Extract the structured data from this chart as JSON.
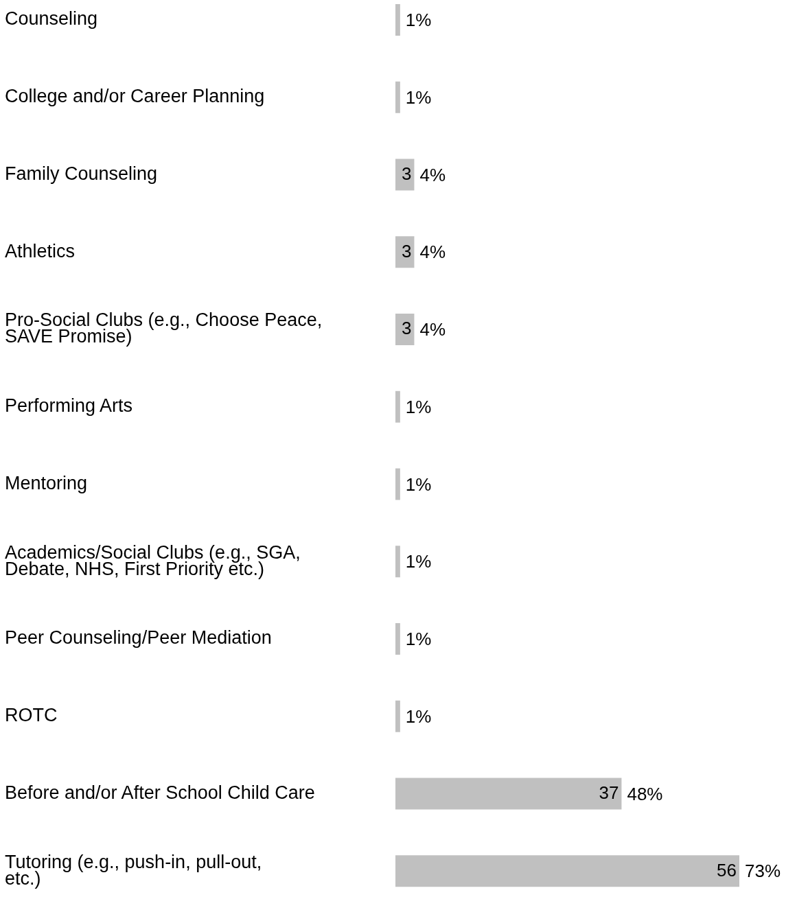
{
  "chart_data": {
    "type": "bar",
    "orientation": "horizontal",
    "categories": [
      "Counseling",
      "College and/or Career Planning",
      "Family Counseling",
      "Athletics",
      "Pro-Social Clubs (e.g., Choose Peace, SAVE Promise)",
      "Performing Arts",
      "Mentoring",
      "Academics/Social Clubs (e.g., SGA, Debate, NHS, First Priority etc.)",
      "Peer Counseling/Peer Mediation",
      "ROTC",
      "Before and/or After School Child Care",
      "Tutoring (e.g., push-in, pull-out, etc.)"
    ],
    "values": [
      1,
      1,
      4,
      4,
      4,
      1,
      1,
      1,
      1,
      1,
      48,
      73
    ],
    "color": "#c0c0c0",
    "value_labels": [
      "1%",
      "1%",
      "4%",
      "4%",
      "4%",
      "1%",
      "1%",
      "1%",
      "1%",
      "1%",
      "48%",
      "73%"
    ],
    "annotations": [
      {
        "text": "3",
        "x": 4,
        "y": "Family Counseling"
      },
      {
        "text": "3",
        "x": 4,
        "y": "Athletics"
      },
      {
        "text": "3",
        "x": 4,
        "y": "Pro-Social Clubs (e.g., Choose Peace, SAVE Promise)"
      },
      {
        "text": "37",
        "x": 48,
        "y": "Before and/or After School Child Care"
      },
      {
        "text": "56",
        "x": 73,
        "y": "Tutoring (e.g., push-in, pull-out, etc.)"
      }
    ],
    "grid": false,
    "legend": false
  }
}
